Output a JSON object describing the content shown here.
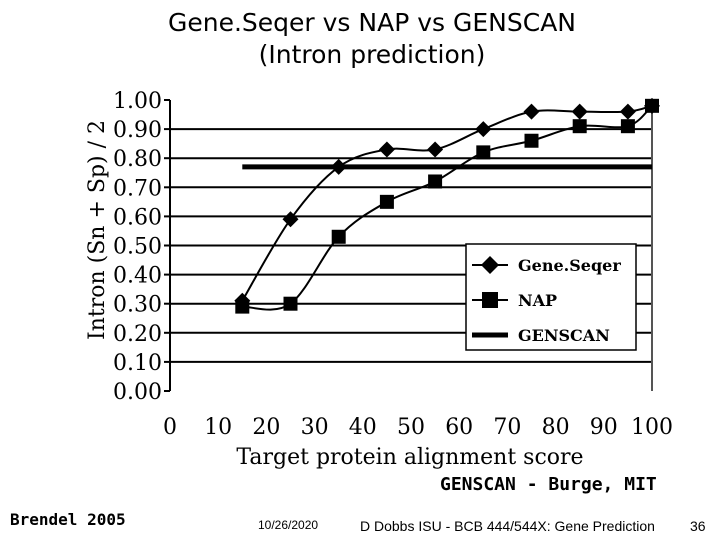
{
  "chart_data": {
    "type": "line",
    "title": "Gene.Seqer vs NAP vs GENSCAN",
    "subtitle": "(Intron prediction)",
    "xlabel": "Target protein alignment score",
    "ylabel": "Intron (Sn + Sp) / 2",
    "xlim": [
      0,
      100
    ],
    "ylim": [
      0,
      1
    ],
    "x_ticks": [
      "0",
      "10",
      "20",
      "30",
      "40",
      "50",
      "60",
      "70",
      "80",
      "90",
      "100"
    ],
    "y_ticks": [
      "1.00",
      "0.90",
      "0.80",
      "0.70",
      "0.60",
      "0.50",
      "0.40",
      "0.30",
      "0.20",
      "0.10",
      "0.00"
    ],
    "grid": "horizontal",
    "legend_position": "bottom-right",
    "series": [
      {
        "name": "Gene.Seqer",
        "marker": "diamond",
        "x": [
          15,
          25,
          35,
          45,
          55,
          65,
          75,
          85,
          95,
          100
        ],
        "y": [
          0.31,
          0.59,
          0.77,
          0.83,
          0.83,
          0.9,
          0.96,
          0.96,
          0.96,
          0.98
        ]
      },
      {
        "name": "NAP",
        "marker": "square",
        "x": [
          15,
          25,
          35,
          45,
          55,
          65,
          75,
          85,
          95,
          100
        ],
        "y": [
          0.29,
          0.3,
          0.53,
          0.65,
          0.72,
          0.82,
          0.86,
          0.91,
          0.91,
          0.98
        ]
      },
      {
        "name": "GENSCAN",
        "marker": "none",
        "x": [
          15,
          100
        ],
        "y": [
          0.77,
          0.77
        ]
      }
    ]
  },
  "credits": {
    "genscan": "GENSCAN - Burge, MIT",
    "brendel": "Brendel 2005"
  },
  "footer": {
    "date": "10/26/2020",
    "course": "D Dobbs ISU - BCB 444/544X: Gene Prediction",
    "page": "36"
  }
}
